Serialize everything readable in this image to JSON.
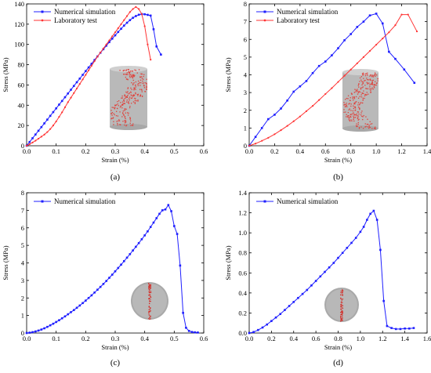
{
  "chart_data": [
    {
      "panel": "(a)",
      "type": "line",
      "xlabel": "Strain (%)",
      "ylabel": "Stress (MPa)",
      "xlim": [
        0,
        0.6
      ],
      "ylim": [
        0,
        140
      ],
      "xticks": [
        0,
        0.1,
        0.2,
        0.3,
        0.4,
        0.5,
        0.6
      ],
      "xtick_labels": [
        "0.0",
        "0.1",
        "0.2",
        "0.3",
        "0.4",
        "0.5",
        "0.6"
      ],
      "yticks": [
        0,
        20,
        40,
        60,
        80,
        100,
        120,
        140
      ],
      "ytick_labels": [
        "0",
        "20",
        "40",
        "60",
        "80",
        "100",
        "120",
        "140"
      ],
      "legend_position": "top-left",
      "inset": "cylindrical specimen",
      "series": [
        {
          "name": "Numerical simulation",
          "color": "#1f1fff",
          "x": [
            0,
            0.01,
            0.02,
            0.03,
            0.04,
            0.05,
            0.06,
            0.07,
            0.08,
            0.09,
            0.1,
            0.11,
            0.12,
            0.13,
            0.14,
            0.15,
            0.16,
            0.17,
            0.18,
            0.19,
            0.2,
            0.21,
            0.22,
            0.23,
            0.24,
            0.25,
            0.26,
            0.27,
            0.28,
            0.29,
            0.3,
            0.31,
            0.32,
            0.33,
            0.34,
            0.35,
            0.36,
            0.37,
            0.38,
            0.39,
            0.4,
            0.41,
            0.42,
            0.43,
            0.44,
            0.455
          ],
          "y": [
            0,
            3.7,
            7.4,
            11.1,
            14.8,
            18.4,
            22.1,
            25.8,
            29.5,
            33.2,
            36.9,
            40.6,
            44.2,
            47.9,
            51.6,
            55.3,
            59.0,
            62.7,
            66.3,
            70.0,
            73.7,
            77.3,
            80.9,
            84.6,
            88.2,
            91.8,
            95.3,
            98.8,
            102.3,
            105.7,
            109.0,
            112.3,
            115.5,
            118.6,
            121.4,
            124.0,
            126.3,
            128.0,
            129.3,
            130.0,
            129.8,
            129.2,
            128.5,
            115.0,
            98.0,
            90.0
          ]
        },
        {
          "name": "Laboratory test",
          "color": "#ff3333",
          "x": [
            0,
            0.01,
            0.02,
            0.03,
            0.04,
            0.05,
            0.06,
            0.07,
            0.08,
            0.09,
            0.1,
            0.11,
            0.12,
            0.13,
            0.14,
            0.15,
            0.16,
            0.17,
            0.18,
            0.19,
            0.2,
            0.21,
            0.22,
            0.23,
            0.24,
            0.25,
            0.26,
            0.27,
            0.28,
            0.29,
            0.3,
            0.31,
            0.32,
            0.33,
            0.34,
            0.35,
            0.36,
            0.37,
            0.38,
            0.39,
            0.4,
            0.41,
            0.42
          ],
          "y": [
            0,
            1.5,
            3.2,
            5.0,
            7.0,
            9.0,
            11.0,
            13.5,
            16.5,
            20.0,
            24.0,
            28.5,
            33.0,
            38.0,
            43.0,
            47.5,
            52.0,
            56.5,
            61.0,
            65.5,
            70.0,
            74.5,
            79.0,
            83.5,
            88.0,
            92.0,
            96.0,
            100.0,
            104.0,
            108.0,
            112.0,
            116.0,
            120.0,
            124.0,
            128.0,
            132.0,
            135.0,
            137.0,
            135.0,
            130.0,
            118.0,
            100.0,
            85.0
          ]
        }
      ]
    },
    {
      "panel": "(b)",
      "type": "line",
      "xlabel": "Strain (%)",
      "ylabel": "Stress (MPa)",
      "xlim": [
        0,
        1.4
      ],
      "ylim": [
        0,
        8
      ],
      "xticks": [
        0,
        0.2,
        0.4,
        0.6,
        0.8,
        1.0,
        1.2,
        1.4
      ],
      "xtick_labels": [
        "0.0",
        "0.2",
        "0.4",
        "0.6",
        "0.8",
        "1.0",
        "1.2",
        "1.4"
      ],
      "yticks": [
        0,
        1,
        2,
        3,
        4,
        5,
        6,
        7,
        8
      ],
      "ytick_labels": [
        "0",
        "1",
        "2",
        "3",
        "4",
        "5",
        "6",
        "7",
        "8"
      ],
      "legend_position": "top-left",
      "inset": "cylindrical specimen",
      "series": [
        {
          "name": "Numerical simulation",
          "color": "#1f1fff",
          "x": [
            0,
            0.05,
            0.1,
            0.15,
            0.2,
            0.25,
            0.3,
            0.35,
            0.4,
            0.45,
            0.5,
            0.55,
            0.6,
            0.65,
            0.7,
            0.75,
            0.8,
            0.85,
            0.9,
            0.95,
            1.0,
            1.05,
            1.1,
            1.15,
            1.22,
            1.3
          ],
          "y": [
            0,
            0.5,
            1.0,
            1.5,
            1.75,
            2.1,
            2.55,
            3.05,
            3.35,
            3.65,
            4.1,
            4.5,
            4.75,
            5.1,
            5.5,
            5.95,
            6.3,
            6.7,
            7.0,
            7.35,
            7.45,
            6.9,
            5.3,
            4.9,
            4.3,
            3.55
          ]
        },
        {
          "name": "Laboratory test",
          "color": "#ff3333",
          "x": [
            0,
            0.05,
            0.1,
            0.15,
            0.2,
            0.25,
            0.3,
            0.35,
            0.4,
            0.45,
            0.5,
            0.55,
            0.6,
            0.65,
            0.7,
            0.75,
            0.8,
            0.85,
            0.9,
            0.95,
            1.0,
            1.05,
            1.1,
            1.15,
            1.2,
            1.25,
            1.32
          ],
          "y": [
            0,
            0.12,
            0.28,
            0.45,
            0.65,
            0.88,
            1.12,
            1.38,
            1.65,
            1.95,
            2.25,
            2.58,
            2.92,
            3.25,
            3.6,
            3.95,
            4.3,
            4.65,
            5.0,
            5.35,
            5.7,
            6.05,
            6.4,
            6.8,
            7.4,
            7.4,
            6.45
          ]
        }
      ]
    },
    {
      "panel": "(c)",
      "type": "line",
      "xlabel": "Strain (%)",
      "ylabel": "Stress (MPa)",
      "xlim": [
        0,
        0.6
      ],
      "ylim": [
        0,
        8
      ],
      "xticks": [
        0,
        0.1,
        0.2,
        0.3,
        0.4,
        0.5,
        0.6
      ],
      "xtick_labels": [
        "0.0",
        "0.1",
        "0.2",
        "0.3",
        "0.4",
        "0.5",
        "0.6"
      ],
      "yticks": [
        0,
        1,
        2,
        3,
        4,
        5,
        6,
        7,
        8
      ],
      "ytick_labels": [
        "0",
        "1",
        "2",
        "3",
        "4",
        "5",
        "6",
        "7",
        "8"
      ],
      "legend_position": "top-left",
      "inset": "disc specimen",
      "series": [
        {
          "name": "Numerical simulation",
          "color": "#1f1fff",
          "x": [
            0,
            0.01,
            0.02,
            0.03,
            0.04,
            0.05,
            0.06,
            0.07,
            0.08,
            0.09,
            0.1,
            0.11,
            0.12,
            0.13,
            0.14,
            0.15,
            0.16,
            0.17,
            0.18,
            0.19,
            0.2,
            0.21,
            0.22,
            0.23,
            0.24,
            0.25,
            0.26,
            0.27,
            0.28,
            0.29,
            0.3,
            0.31,
            0.32,
            0.33,
            0.34,
            0.35,
            0.36,
            0.37,
            0.38,
            0.39,
            0.4,
            0.41,
            0.42,
            0.43,
            0.44,
            0.45,
            0.46,
            0.47,
            0.48,
            0.49,
            0.5,
            0.51,
            0.52,
            0.53,
            0.54,
            0.55,
            0.56,
            0.57,
            0.58
          ],
          "y": [
            0,
            0.02,
            0.05,
            0.09,
            0.14,
            0.2,
            0.27,
            0.35,
            0.44,
            0.53,
            0.63,
            0.73,
            0.84,
            0.95,
            1.07,
            1.19,
            1.31,
            1.44,
            1.57,
            1.71,
            1.85,
            2.0,
            2.15,
            2.31,
            2.47,
            2.63,
            2.8,
            2.97,
            3.15,
            3.33,
            3.52,
            3.71,
            3.9,
            4.1,
            4.3,
            4.5,
            4.71,
            4.92,
            5.13,
            5.35,
            5.57,
            5.8,
            6.05,
            6.3,
            6.55,
            6.8,
            7.0,
            7.05,
            7.3,
            6.95,
            6.1,
            5.65,
            3.85,
            1.15,
            0.3,
            0.12,
            0.06,
            0.04,
            0.03
          ]
        }
      ]
    },
    {
      "panel": "(d)",
      "type": "line",
      "xlabel": "Strain (%)",
      "ylabel": "Stress (MPa)",
      "xlim": [
        0,
        1.6
      ],
      "ylim": [
        0,
        1.4
      ],
      "xticks": [
        0,
        0.2,
        0.4,
        0.6,
        0.8,
        1.0,
        1.2,
        1.4,
        1.6
      ],
      "xtick_labels": [
        "0.0",
        "0.2",
        "0.4",
        "0.6",
        "0.8",
        "1.0",
        "1.2",
        "1.4",
        "1.6"
      ],
      "yticks": [
        0,
        0.2,
        0.4,
        0.6,
        0.8,
        1.0,
        1.2,
        1.4
      ],
      "ytick_labels": [
        "0.0",
        "0.2",
        "0.4",
        "0.6",
        "0.8",
        "1.0",
        "1.2",
        "1.4"
      ],
      "legend_position": "top-left",
      "inset": "disc specimen",
      "series": [
        {
          "name": "Numerical simulation",
          "color": "#1f1fff",
          "x": [
            0,
            0.04,
            0.08,
            0.12,
            0.16,
            0.2,
            0.24,
            0.28,
            0.32,
            0.36,
            0.4,
            0.44,
            0.48,
            0.52,
            0.56,
            0.6,
            0.64,
            0.68,
            0.72,
            0.76,
            0.8,
            0.84,
            0.88,
            0.92,
            0.96,
            1.0,
            1.03,
            1.06,
            1.09,
            1.12,
            1.15,
            1.18,
            1.21,
            1.24,
            1.28,
            1.32,
            1.36,
            1.4,
            1.44,
            1.48
          ],
          "y": [
            0,
            0.01,
            0.03,
            0.055,
            0.085,
            0.12,
            0.155,
            0.19,
            0.23,
            0.27,
            0.31,
            0.35,
            0.39,
            0.43,
            0.475,
            0.52,
            0.565,
            0.61,
            0.655,
            0.7,
            0.75,
            0.8,
            0.85,
            0.9,
            0.95,
            1.01,
            1.06,
            1.13,
            1.19,
            1.22,
            1.13,
            0.83,
            0.32,
            0.07,
            0.05,
            0.04,
            0.04,
            0.045,
            0.045,
            0.05
          ]
        }
      ]
    }
  ]
}
